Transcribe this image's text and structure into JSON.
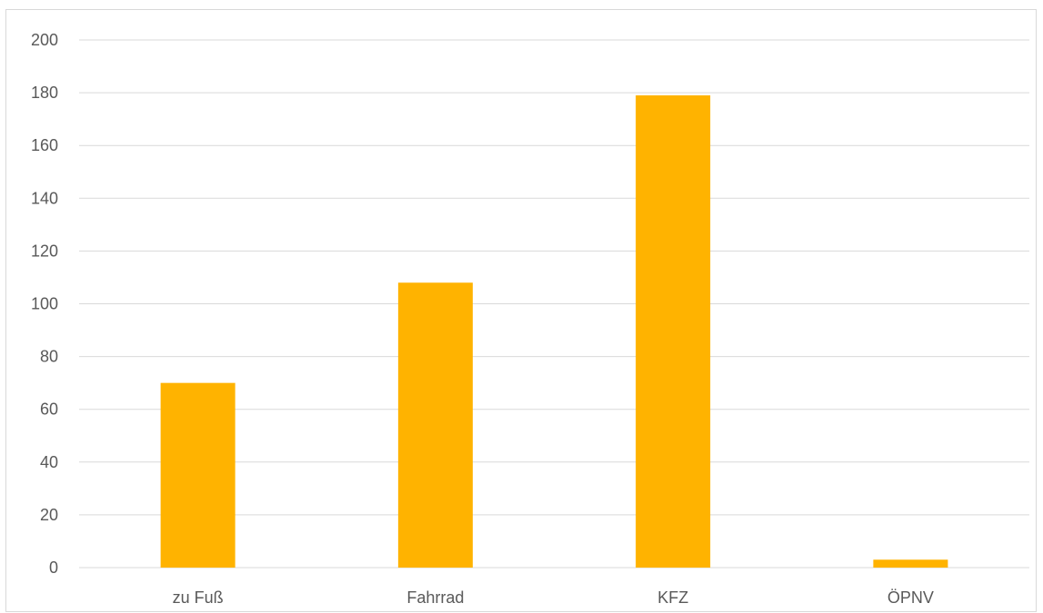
{
  "chart_data": {
    "type": "bar",
    "title": "",
    "xlabel": "",
    "ylabel": "",
    "categories": [
      "zu Fuß",
      "Fahrrad",
      "KFZ",
      "ÖPNV"
    ],
    "values": [
      70,
      108,
      179,
      3
    ],
    "ylim": [
      0,
      200
    ],
    "yticks": [
      0,
      20,
      40,
      60,
      80,
      100,
      120,
      140,
      160,
      180,
      200
    ],
    "grid": true,
    "legend": "none",
    "colors": {
      "bar": "#FFB300",
      "grid": "#D9D9D9",
      "text": "#595959"
    }
  }
}
